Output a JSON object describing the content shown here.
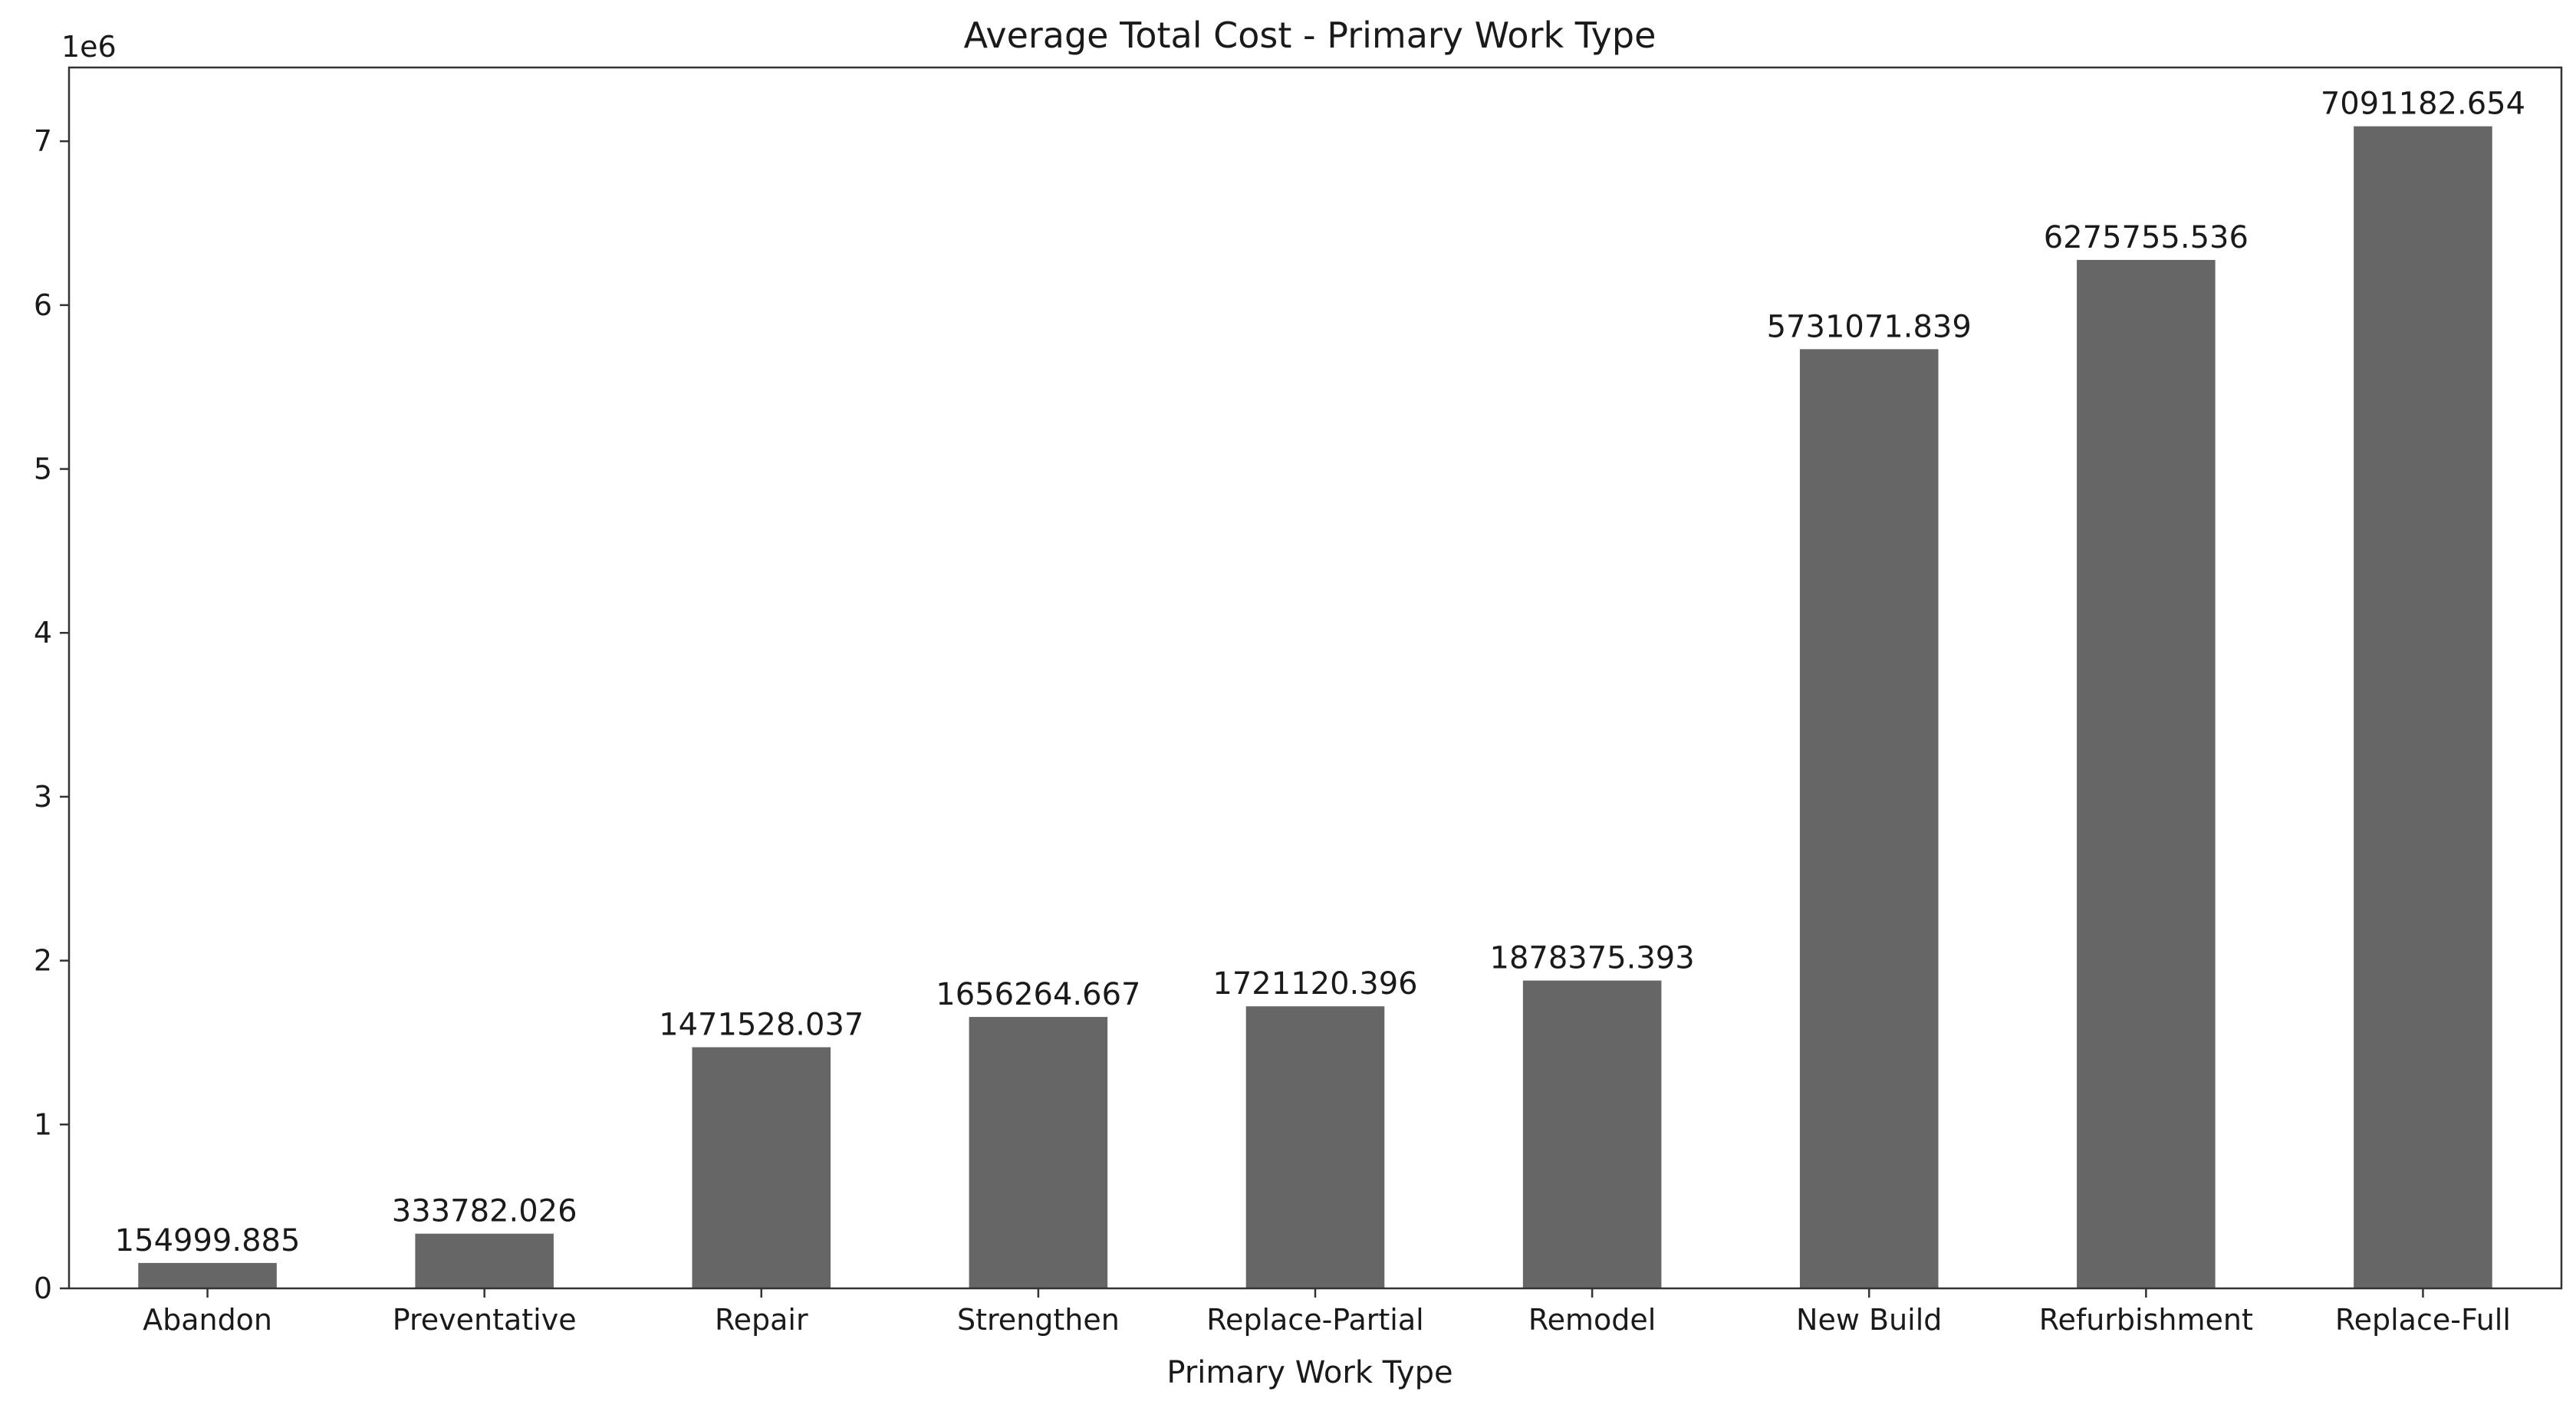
{
  "chart_data": {
    "type": "bar",
    "title": "Average Total Cost - Primary Work Type",
    "xlabel": "Primary Work Type",
    "ylabel": "",
    "y_exponent_label": "1e6",
    "categories": [
      "Abandon",
      "Preventative",
      "Repair",
      "Strengthen",
      "Replace-Partial",
      "Remodel",
      "New Build",
      "Refurbishment",
      "Replace-Full"
    ],
    "values": [
      154999.885,
      333782.026,
      1471528.037,
      1656264.667,
      1721120.396,
      1878375.393,
      5731071.839,
      6275755.536,
      7091182.654
    ],
    "value_labels": [
      "154999.885",
      "333782.026",
      "1471528.037",
      "1656264.667",
      "1721120.396",
      "1878375.393",
      "5731071.839",
      "6275755.536",
      "7091182.654"
    ],
    "ylim": [
      0,
      7450000
    ],
    "yticks": [
      0,
      1000000,
      2000000,
      3000000,
      4000000,
      5000000,
      6000000,
      7000000
    ],
    "ytick_labels": [
      "0",
      "1",
      "2",
      "3",
      "4",
      "5",
      "6",
      "7"
    ],
    "grid": false,
    "legend": "none",
    "colors": {
      "bar": "#666666",
      "axis": "#333333",
      "text": "#1a1a1a",
      "background": "#ffffff"
    }
  }
}
